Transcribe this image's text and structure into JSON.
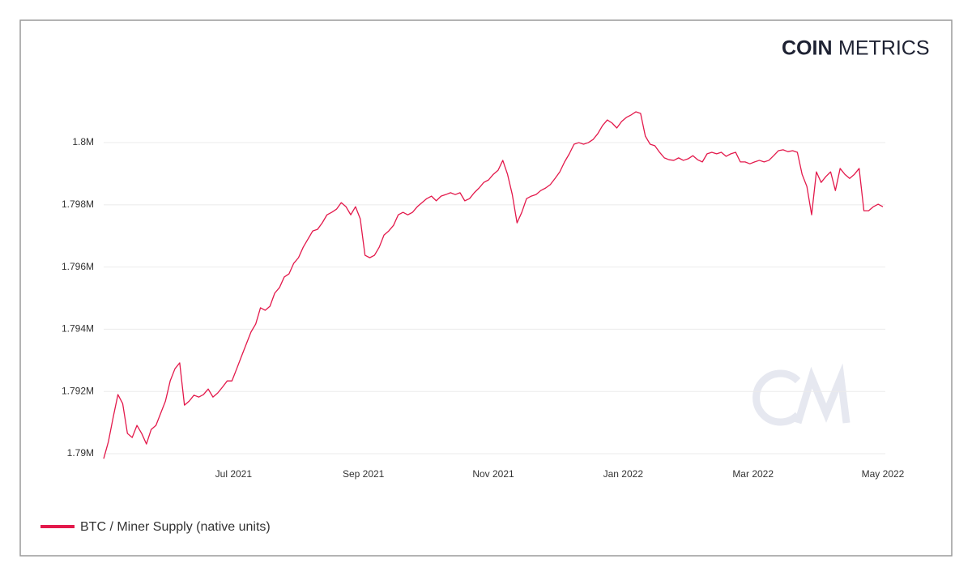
{
  "chart_data": {
    "type": "line",
    "brand": {
      "bold": "COIN",
      "light": "METRICS"
    },
    "xlim": [
      "2021-05",
      "2022-05"
    ],
    "xticks": [
      {
        "value": "2021-07",
        "label": "Jul 2021"
      },
      {
        "value": "2021-09",
        "label": "Sep 2021"
      },
      {
        "value": "2021-11",
        "label": "Nov 2021"
      },
      {
        "value": "2022-01",
        "label": "Jan 2022"
      },
      {
        "value": "2022-03",
        "label": "Mar 2022"
      },
      {
        "value": "2022-05",
        "label": "May 2022"
      }
    ],
    "ylim": [
      1789740,
      1801460
    ],
    "yticks": [
      {
        "value": 1790000,
        "label": "1.79M"
      },
      {
        "value": 1792000,
        "label": "1.792M"
      },
      {
        "value": 1794000,
        "label": "1.794M"
      },
      {
        "value": 1796000,
        "label": "1.796M"
      },
      {
        "value": 1798000,
        "label": "1.798M"
      },
      {
        "value": 1800000,
        "label": "1.8M"
      }
    ],
    "grid": true,
    "legend": "bottom-left",
    "series": [
      {
        "name": "BTC / Miner Supply (native units)",
        "color": "#e3194b",
        "values": [
          1789840,
          1790390,
          1791170,
          1791900,
          1791610,
          1790650,
          1790520,
          1790910,
          1790650,
          1790310,
          1790780,
          1790910,
          1791300,
          1791690,
          1792340,
          1792730,
          1792920,
          1791560,
          1791690,
          1791880,
          1791820,
          1791900,
          1792080,
          1791820,
          1791950,
          1792140,
          1792340,
          1792340,
          1792730,
          1793130,
          1793520,
          1793910,
          1794170,
          1794690,
          1794610,
          1794740,
          1795160,
          1795340,
          1795680,
          1795780,
          1796120,
          1796300,
          1796640,
          1796900,
          1797160,
          1797210,
          1797420,
          1797680,
          1797760,
          1797860,
          1798070,
          1797940,
          1797680,
          1797940,
          1797550,
          1796380,
          1796300,
          1796380,
          1796640,
          1797030,
          1797160,
          1797340,
          1797680,
          1797760,
          1797680,
          1797760,
          1797940,
          1798070,
          1798200,
          1798280,
          1798130,
          1798280,
          1798330,
          1798390,
          1798330,
          1798390,
          1798130,
          1798200,
          1798390,
          1798540,
          1798720,
          1798800,
          1798980,
          1799110,
          1799430,
          1798980,
          1798330,
          1797420,
          1797760,
          1798200,
          1798280,
          1798330,
          1798460,
          1798540,
          1798650,
          1798850,
          1799060,
          1799380,
          1799640,
          1799950,
          1800000,
          1799950,
          1800000,
          1800100,
          1800290,
          1800550,
          1800730,
          1800630,
          1800470,
          1800680,
          1800810,
          1800890,
          1800990,
          1800940,
          1800210,
          1799950,
          1799900,
          1799690,
          1799510,
          1799450,
          1799430,
          1799510,
          1799430,
          1799480,
          1799580,
          1799450,
          1799380,
          1799640,
          1799690,
          1799640,
          1799690,
          1799560,
          1799640,
          1799690,
          1799380,
          1799380,
          1799320,
          1799380,
          1799430,
          1799380,
          1799430,
          1799580,
          1799740,
          1799770,
          1799710,
          1799740,
          1799690,
          1798980,
          1798590,
          1797680,
          1799060,
          1798720,
          1798910,
          1799060,
          1798460,
          1799170,
          1798980,
          1798850,
          1798980,
          1799170,
          1797810,
          1797810,
          1797940,
          1798020,
          1797940
        ]
      }
    ]
  }
}
